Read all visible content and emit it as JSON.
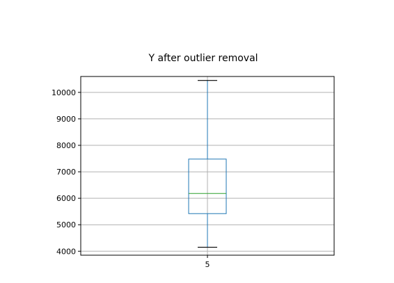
{
  "chart_data": {
    "type": "box",
    "title": "Y after outlier removal",
    "xlabel": "",
    "ylabel": "",
    "categories": [
      "5"
    ],
    "series": [
      {
        "whisker_low": 4150,
        "q1": 5420,
        "median": 6180,
        "q3": 7480,
        "whisker_high": 10450
      }
    ],
    "ylim": [
      3850,
      10600
    ],
    "yticks": [
      4000,
      5000,
      6000,
      7000,
      8000,
      9000,
      10000
    ],
    "grid": true,
    "colors": {
      "box": "#1f77b4",
      "median": "#2ca02c",
      "caps": "#000000",
      "grid": "#b0b0b0",
      "frame": "#000000"
    }
  }
}
